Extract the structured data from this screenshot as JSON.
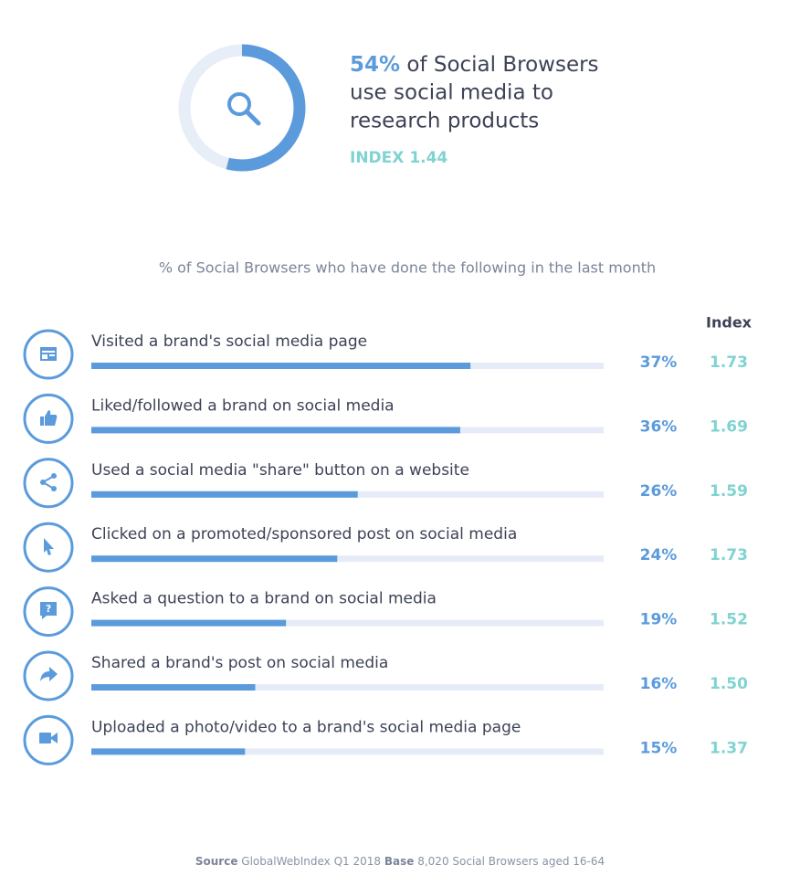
{
  "chart_data": [
    {
      "type": "donut",
      "values": [
        54
      ],
      "value_labels": [
        "54%"
      ],
      "ylim": [
        0,
        100
      ],
      "color": "#5b9bdc",
      "track_color": "#e8eef8",
      "text_lines": [
        "of Social Browsers",
        "use social media to",
        "research products"
      ],
      "index_label": "INDEX",
      "index": 1.44
    },
    {
      "type": "hbar",
      "title": "% of Social Browsers who have done the following in the last month",
      "categories": [
        "Visited a brand's social media page",
        "Liked/followed a brand on social media",
        "Used a social media \"share\" button on a website",
        "Clicked on a promoted/sponsored post on social media",
        "Asked a question to a brand on social media",
        "Shared a brand's post on social media",
        "Uploaded a photo/video to a brand's social media page"
      ],
      "values": [
        37,
        36,
        26,
        24,
        19,
        16,
        15
      ],
      "value_labels": [
        "37%",
        "36%",
        "26%",
        "24%",
        "19%",
        "16%",
        "15%"
      ],
      "xlim": [
        0,
        50
      ],
      "color": "#5b9bdc",
      "track_color": "#e6ecf7",
      "index": {
        "name": "Index",
        "values": [
          1.73,
          1.69,
          1.59,
          1.73,
          1.52,
          1.5,
          1.37
        ],
        "value_labels": [
          "1.73",
          "1.69",
          "1.59",
          "1.73",
          "1.52",
          "1.50",
          "1.37"
        ],
        "color": "#7fd3d0"
      }
    }
  ],
  "footer": {
    "source_label": "Source",
    "source": "GlobalWebIndex Q1 2018",
    "base_label": "Base",
    "base": "8,020 Social Browsers aged 16-64"
  }
}
